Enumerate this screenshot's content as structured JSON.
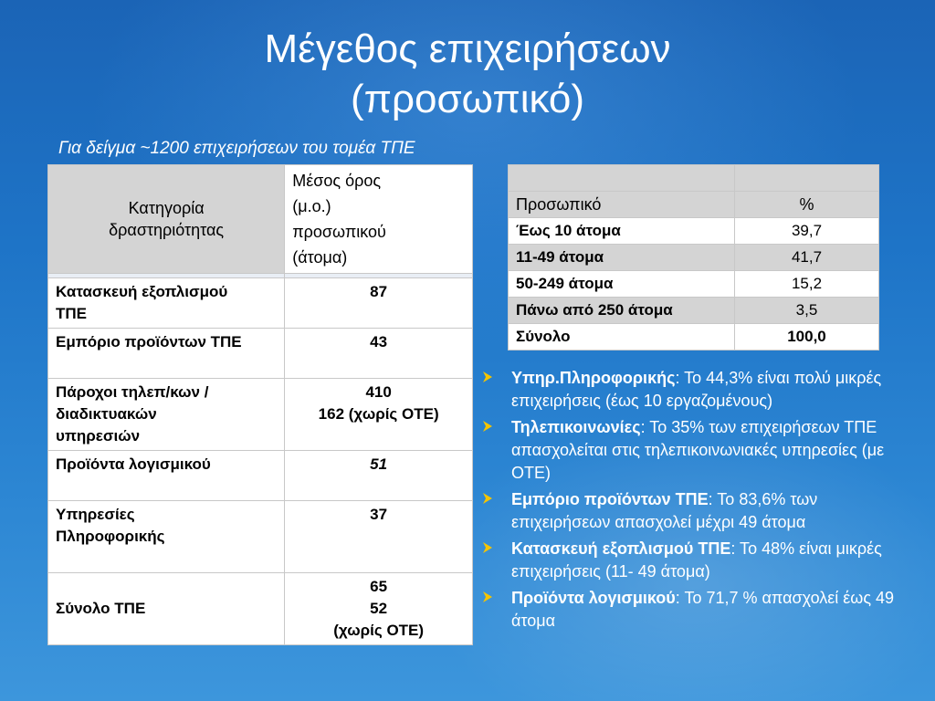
{
  "title_line1": "Μέγεθος επιχειρήσεων",
  "title_line2": "(προσωπικό)",
  "subtitle": "Για δείγμα ~1200 επιχειρήσεων του τομέα ΤΠΕ",
  "left_table": {
    "col1_header_l1": "Κατηγορία",
    "col1_header_l2": "δραστηριότητας",
    "col2_header_l1": "Μέσος όρος",
    "col2_header_l2": "(μ.ο.)",
    "col2_header_l3": "προσωπικού",
    "col2_header_l4": "(άτομα)",
    "rows": [
      {
        "category_l1": "Κατασκευή εξοπλισμού",
        "category_l2": "ΤΠΕ",
        "value": "87"
      },
      {
        "category": "Εμπόριο προϊόντων ΤΠΕ",
        "value": "43"
      },
      {
        "category_l1": "Πάροχοι τηλεπ/κων /",
        "category_l2": "διαδικτυακών",
        "category_l3": "υπηρεσιών",
        "value_l1": "410",
        "value_l2": "162 (χωρίς ΟΤΕ)"
      },
      {
        "category": "Προϊόντα λογισμικού",
        "value": "51"
      },
      {
        "category_l1": "Υπηρεσίες",
        "category_l2": "Πληροφορικής",
        "value": "37"
      },
      {
        "category": "Σύνολο ΤΠΕ",
        "value_l1": "65",
        "value_l2": "52",
        "value_l3": "(χωρίς ΟΤΕ)"
      }
    ]
  },
  "right_table": {
    "header_col1": "Προσωπικό",
    "header_col2": "%",
    "rows": [
      {
        "label": "Έως 10 άτομα",
        "value": "39,7"
      },
      {
        "label": "11-49 άτομα",
        "value": "41,7"
      },
      {
        "label": "50-249 άτομα",
        "value": "15,2"
      },
      {
        "label": "Πάνω από 250 άτομα",
        "value": "3,5"
      },
      {
        "label": "Σύνολο",
        "value": "100,0"
      }
    ]
  },
  "bullets": [
    {
      "label": "Υπηρ.Πληροφορικής",
      "text": ": Το 44,3% είναι πολύ μικρές επιχειρήσεις (έως 10 εργαζομένους)"
    },
    {
      "label": "Τηλεπικοινωνίες",
      "text": ": Το 35% των επιχειρήσεων ΤΠΕ απασχολείται στις τηλεπικοινωνιακές υπηρεσίες (με ΟΤΕ)"
    },
    {
      "label": "Εμπόριο προϊόντων ΤΠΕ",
      "text": ": Το 83,6% των επιχειρήσεων απασχολεί μέχρι 49 άτομα"
    },
    {
      "label": "Κατασκευή εξοπλισμού ΤΠΕ",
      "text": ": Το 48% είναι μικρές επιχειρήσεις (11- 49 άτομα)"
    },
    {
      "label": "Προϊόντα λογισμικού",
      "text": ": Το 71,7 % απασχολεί έως 49 άτομα"
    }
  ],
  "colors": {
    "bullet_arrow": "#f5c400",
    "background": "#1e74c7"
  }
}
